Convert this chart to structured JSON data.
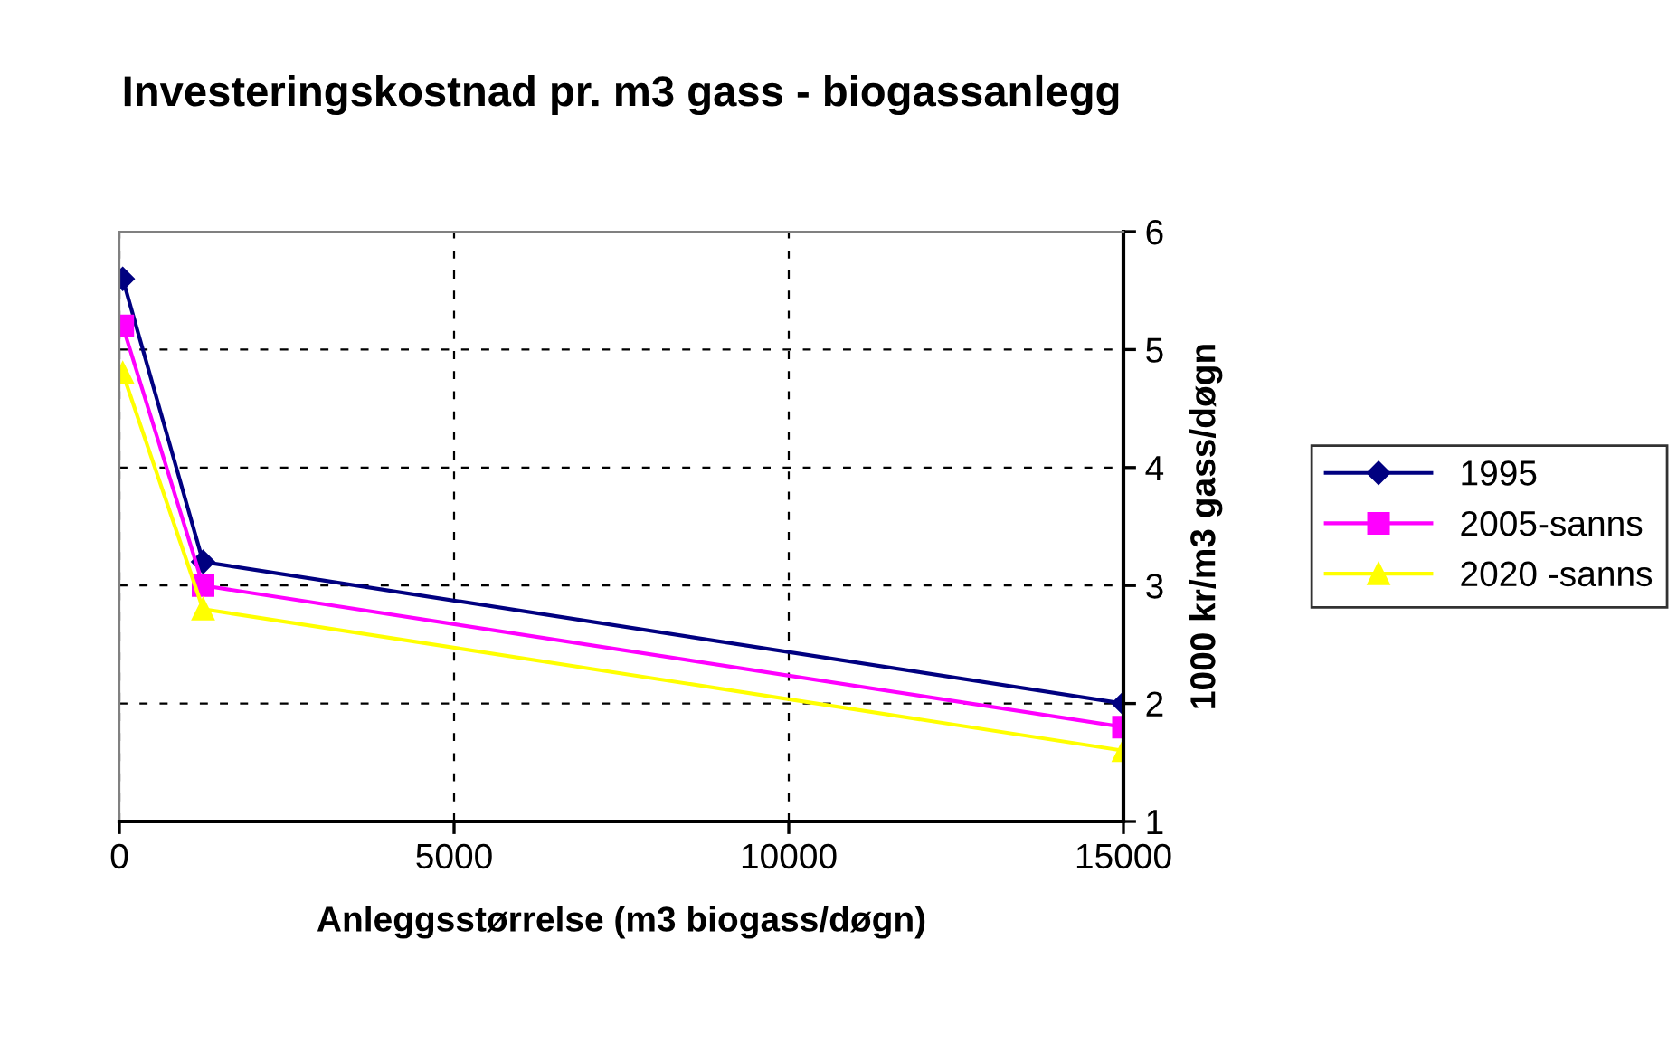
{
  "chart_data": {
    "type": "line",
    "title": "Investeringskostnad pr. m3 gass - biogassanlegg",
    "xlabel": "Anleggsstørrelse (m3 biogass/døgn)",
    "ylabel": "1000 kr/m3 gass/døgn",
    "x": [
      50,
      1250,
      15000
    ],
    "series": [
      {
        "name": "1995",
        "color": "#000080",
        "marker": "diamond",
        "values": [
          5.6,
          3.2,
          2.0
        ]
      },
      {
        "name": "2005-sanns",
        "color": "#ff00ff",
        "marker": "square",
        "values": [
          5.2,
          3.0,
          1.8
        ]
      },
      {
        "name": "2020 -sanns",
        "color": "#ffff00",
        "marker": "triangle",
        "values": [
          4.8,
          2.8,
          1.6
        ]
      }
    ],
    "xlim": [
      0,
      15000
    ],
    "xticks": [
      0,
      5000,
      10000,
      15000
    ],
    "ylim": [
      1,
      6
    ],
    "yticks": [
      1,
      2,
      3,
      4,
      5,
      6
    ],
    "grid": true,
    "legend": "right",
    "line_style": "solid"
  }
}
